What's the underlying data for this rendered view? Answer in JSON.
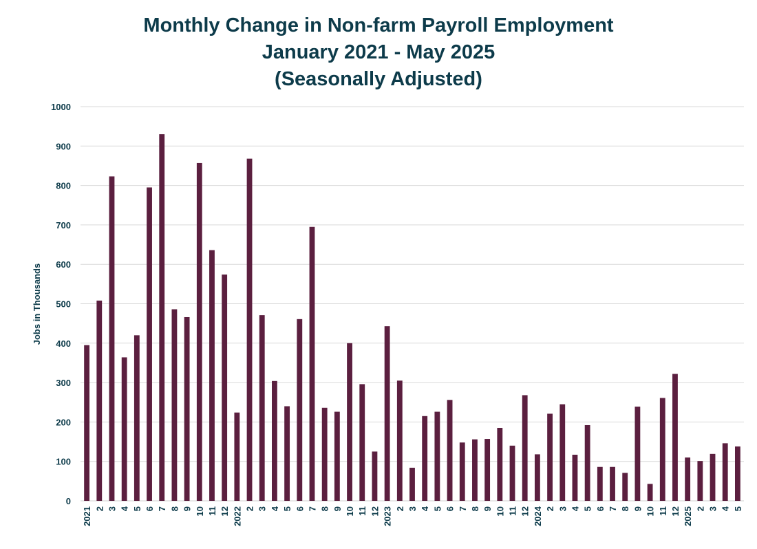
{
  "chart_data": {
    "type": "bar",
    "title": [
      "Monthly Change in Non-farm Payroll Employment",
      "January 2021 - May 2025",
      "(Seasonally Adjusted)"
    ],
    "xlabel": "",
    "ylabel": "Jobs in Thousands",
    "ylim": [
      0,
      1000
    ],
    "yticks": [
      0,
      100,
      200,
      300,
      400,
      500,
      600,
      700,
      800,
      900,
      1000
    ],
    "grid": true,
    "bar_color": "#5b1f3f",
    "grid_color": "#d9d9d9",
    "categories": [
      "2021",
      "2",
      "3",
      "4",
      "5",
      "6",
      "7",
      "8",
      "9",
      "10",
      "11",
      "12",
      "2022",
      "2",
      "3",
      "4",
      "5",
      "6",
      "7",
      "8",
      "9",
      "10",
      "11",
      "12",
      "2023",
      "2",
      "3",
      "4",
      "5",
      "6",
      "7",
      "8",
      "9",
      "10",
      "11",
      "12",
      "2024",
      "2",
      "3",
      "4",
      "5",
      "6",
      "7",
      "8",
      "9",
      "10",
      "11",
      "12",
      "2025",
      "2",
      "3",
      "4",
      "5"
    ],
    "values": [
      395,
      508,
      823,
      364,
      420,
      795,
      930,
      486,
      466,
      857,
      636,
      574,
      224,
      868,
      471,
      304,
      240,
      461,
      695,
      236,
      226,
      400,
      296,
      125,
      443,
      305,
      84,
      215,
      226,
      256,
      148,
      156,
      157,
      185,
      140,
      268,
      118,
      221,
      245,
      117,
      192,
      86,
      86,
      71,
      239,
      43,
      261,
      322,
      110,
      101,
      119,
      146,
      138
    ]
  }
}
